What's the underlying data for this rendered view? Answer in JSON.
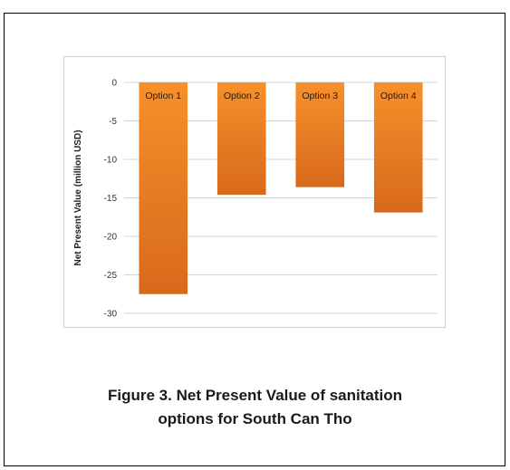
{
  "chart_data": {
    "type": "bar",
    "title": "",
    "xlabel": "",
    "ylabel": "Net Present Value (million USD)",
    "categories": [
      "Option 1",
      "Option 2",
      "Option 3",
      "Option 4"
    ],
    "values": [
      -27.5,
      -14.6,
      -13.6,
      -16.9
    ],
    "ylim": [
      -30,
      0
    ],
    "yticks": [
      0,
      -5,
      -10,
      -15,
      -20,
      -25,
      -30
    ],
    "ytick_labels": [
      "0",
      "-5",
      "-10",
      "-15",
      "-20",
      "-25",
      "-30"
    ],
    "grid": true,
    "legend": "none",
    "bar_color_top": "#f7902a",
    "bar_color_bottom": "#d8691c",
    "category_label_position": "inside-top"
  },
  "caption": {
    "line1": "Figure 3. Net Present Value of sanitation",
    "line2": "options for South Can Tho"
  }
}
